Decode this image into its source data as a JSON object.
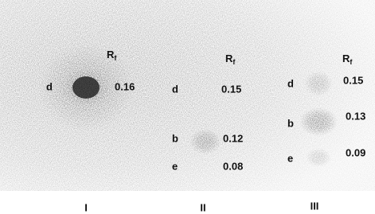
{
  "header": {
    "symbol": "R",
    "subscript": "f"
  },
  "lanes": [
    {
      "label": "I",
      "spots": [
        {
          "letter": "d",
          "rf": "0.16"
        }
      ]
    },
    {
      "label": "II",
      "spots": [
        {
          "letter": "d",
          "rf": "0.15"
        },
        {
          "letter": "b",
          "rf": "0.12"
        },
        {
          "letter": "e",
          "rf": "0.08"
        }
      ]
    },
    {
      "label": "III",
      "spots": [
        {
          "letter": "d",
          "rf": "0.15"
        },
        {
          "letter": "b",
          "rf": "0.13"
        },
        {
          "letter": "e",
          "rf": "0.09"
        }
      ]
    }
  ]
}
